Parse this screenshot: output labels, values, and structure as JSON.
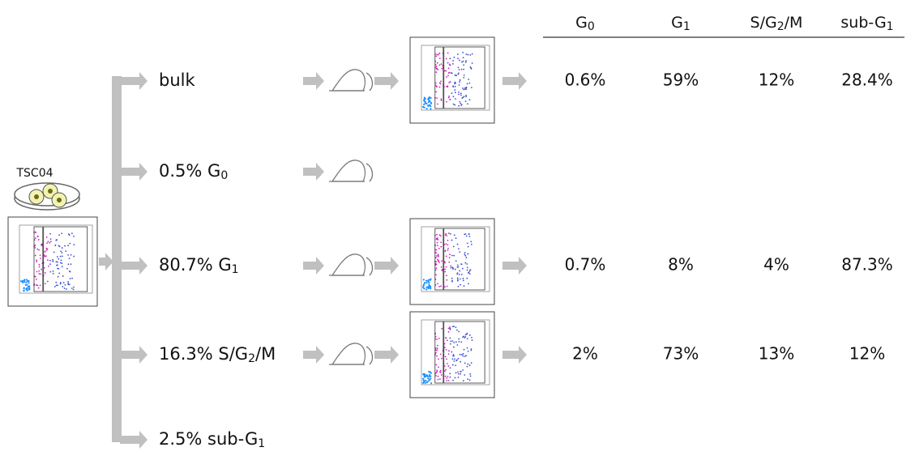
{
  "source": {
    "label": "TSC04"
  },
  "branches": [
    {
      "label": [
        "bulk"
      ]
    },
    {
      "label": [
        "0.5% G",
        {
          "sub": "0"
        }
      ]
    },
    {
      "label": [
        "80.7% G",
        {
          "sub": "1"
        }
      ]
    },
    {
      "label": [
        "16.3% S/G",
        {
          "sub": "2"
        },
        "/M"
      ]
    },
    {
      "label": [
        "2.5% sub-G",
        {
          "sub": "1"
        }
      ]
    }
  ],
  "table": {
    "headers": [
      [
        "G",
        {
          "sub": "0"
        }
      ],
      [
        "G",
        {
          "sub": "1"
        }
      ],
      [
        "S/G",
        {
          "sub": "2"
        },
        "/M"
      ],
      [
        "sub-G",
        {
          "sub": "1"
        }
      ]
    ],
    "rows": [
      [
        "0.6%",
        "59%",
        "12%",
        "28.4%"
      ],
      [
        "0.7%",
        "8%",
        "4%",
        "87.3%"
      ],
      [
        "2%",
        "73%",
        "13%",
        "12%"
      ]
    ]
  }
}
